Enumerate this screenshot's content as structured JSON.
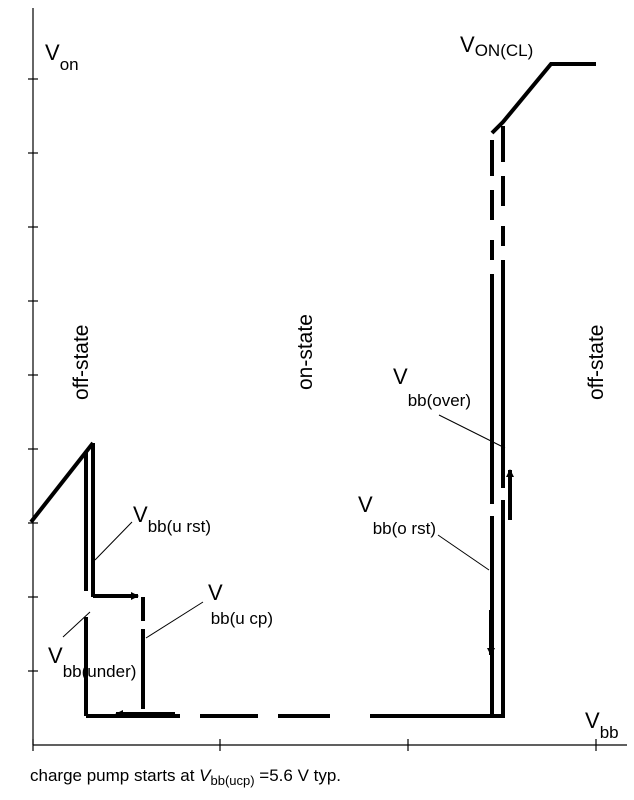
{
  "axes": {
    "y_label_main": "V",
    "y_label_sub": "on",
    "x_label_main": "V",
    "x_label_sub": "bb"
  },
  "states": {
    "left": "off-state",
    "middle": "on-state",
    "right": "off-state"
  },
  "labels": {
    "v_on_cl": {
      "main": "V",
      "sub": "ON(CL)"
    },
    "bb_u_rst": {
      "main": "V",
      "sub": "bb(u rst)"
    },
    "bb_u_cp": {
      "main": "V",
      "sub": "bb(u cp)"
    },
    "bb_under": {
      "main": "V",
      "sub": "bb(under)"
    },
    "bb_over": {
      "main": "V",
      "sub": "bb(over)"
    },
    "bb_o_rst": {
      "main": "V",
      "sub": "bb(o rst)"
    }
  },
  "caption": {
    "prefix": "charge pump starts at ",
    "var_main": "V",
    "var_sub": "bb(ucp)",
    "suffix": " =5.6 V typ."
  }
}
